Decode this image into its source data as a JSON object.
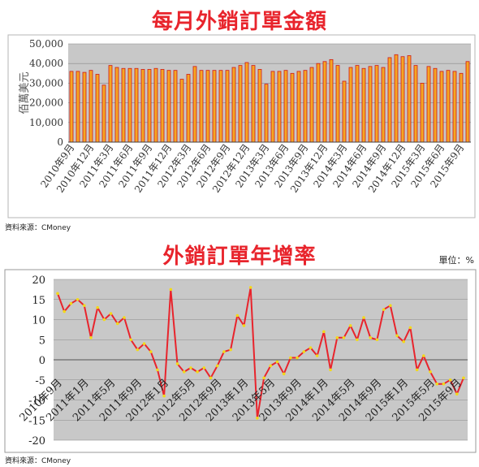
{
  "charts": {
    "top_title": "每月外銷訂單金額",
    "bottom_title": "外銷訂單年增率",
    "top_source": "資料來源：CMoney",
    "bottom_source": "資料來源：CMoney",
    "unit_label": "單位：%"
  },
  "chart_data": [
    {
      "type": "bar",
      "title": "每月外銷訂單金額",
      "ylabel": "佰萬美元",
      "xlabel": "",
      "ylim": [
        0,
        50000
      ],
      "yticks": [
        "50,000",
        "40,000",
        "30,000",
        "20,000",
        "10,000",
        "0"
      ],
      "grid": true,
      "categories_visible": [
        "2010年9月",
        "2010年12月",
        "2011年3月",
        "2011年6月",
        "2011年9月",
        "2011年12月",
        "2012年3月",
        "2012年6月",
        "2012年9月",
        "2012年12月",
        "2013年3月",
        "2013年6月",
        "2013年9月",
        "2013年12月",
        "2014年3月",
        "2014年6月",
        "2014年9月",
        "2014年12月",
        "2015年3月",
        "2015年6月",
        "2015年9月"
      ],
      "values": [
        36000,
        36000,
        35500,
        36500,
        34500,
        29000,
        39000,
        38000,
        37500,
        37500,
        37500,
        37000,
        37000,
        37500,
        37000,
        36500,
        36500,
        32000,
        34500,
        38500,
        36500,
        36500,
        36500,
        36500,
        36500,
        38000,
        39000,
        40500,
        39000,
        37000,
        29500,
        36000,
        36000,
        36500,
        35000,
        36000,
        36500,
        38000,
        40000,
        41000,
        42000,
        39000,
        31000,
        38000,
        39000,
        37500,
        38500,
        39000,
        38000,
        43000,
        44500,
        43500,
        44000,
        39000,
        30000,
        38500,
        37500,
        36000,
        36500,
        36000,
        35000,
        41000
      ],
      "colors": {
        "bar": "#f5a623",
        "edge": "#d01818",
        "plot_bg": "#c8c8c8"
      }
    },
    {
      "type": "line",
      "title": "外銷訂單年增率",
      "ylabel": "",
      "xlabel": "",
      "unit": "%",
      "ylim": [
        -20,
        20
      ],
      "yticks": [
        "20",
        "15",
        "10",
        "5",
        "0",
        "-5",
        "-10",
        "-15",
        "-20"
      ],
      "grid": true,
      "categories_visible": [
        "2010年9月",
        "2011年1月",
        "2011年5月",
        "2011年9月",
        "2012年1月",
        "2012年5月",
        "2012年9月",
        "2013年1月",
        "2013年5月",
        "2013年9月",
        "2014年1月",
        "2014年5月",
        "2014年9月",
        "2015年1月",
        "2015年5月",
        "2015年9月"
      ],
      "values": [
        16.5,
        12,
        14,
        15,
        13.5,
        5.5,
        13,
        10,
        11.5,
        9,
        10.5,
        5,
        2.5,
        4,
        2,
        -2.5,
        -9,
        17.5,
        -1,
        -3,
        -2,
        -3,
        -2,
        -4.5,
        -1.5,
        2,
        2.5,
        11,
        8.5,
        18,
        -14.5,
        -4.5,
        -1.5,
        -0.5,
        -3.5,
        0.5,
        0.5,
        2,
        3,
        1,
        7,
        -2.5,
        5.5,
        5.5,
        8.5,
        5,
        10.5,
        5.5,
        5,
        12.5,
        13.5,
        6,
        4.5,
        8,
        -2.5,
        1,
        -3,
        -6,
        -6,
        -5,
        -8.5,
        -4.5
      ],
      "colors": {
        "line": "#e8242c",
        "marker": "#f2d91a",
        "plot_bg": "#c8c8c8"
      }
    }
  ]
}
